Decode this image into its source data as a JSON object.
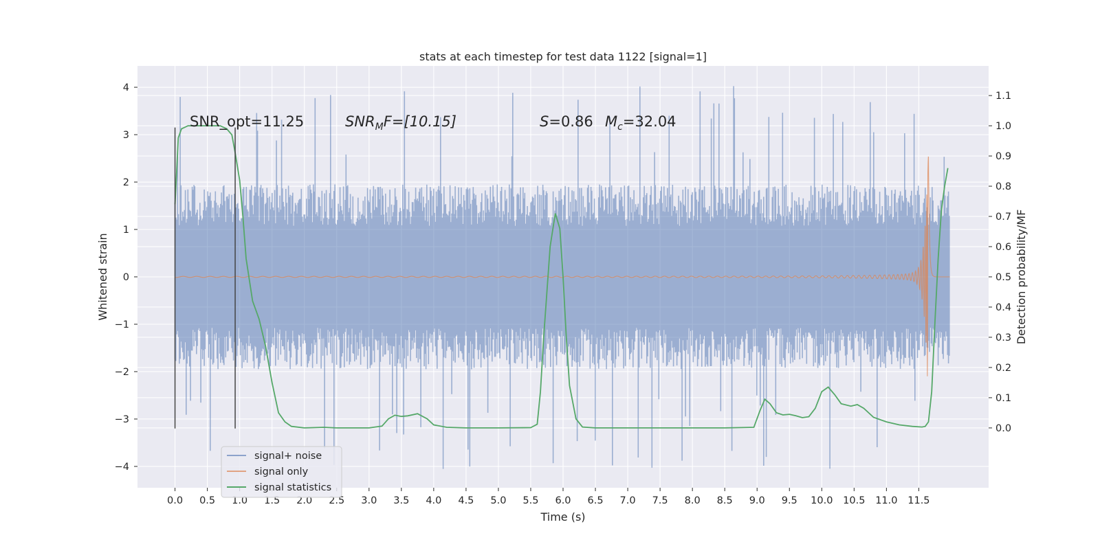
{
  "chart_data": {
    "type": "line",
    "title": "stats at each timestep for test data 1122 [signal=1]",
    "xlabel": "Time (s)",
    "ylabel": "Whitened strain",
    "y2label": "Detection probability/MF",
    "xlim": [
      -0.58,
      12.58
    ],
    "ylim": [
      -4.45,
      4.45
    ],
    "y2lim": [
      -0.198,
      1.198
    ],
    "xticks": [
      "0.0",
      "0.5",
      "1.0",
      "1.5",
      "2.0",
      "2.5",
      "3.0",
      "3.5",
      "4.0",
      "4.5",
      "5.0",
      "5.5",
      "6.0",
      "6.5",
      "7.0",
      "7.5",
      "8.0",
      "8.5",
      "9.0",
      "9.5",
      "10.0",
      "10.5",
      "11.0",
      "11.5"
    ],
    "yticks": [
      "4",
      "3",
      "2",
      "1",
      "0",
      "−1",
      "−2",
      "−3",
      "−4"
    ],
    "y2ticks": [
      "1.1",
      "1.0",
      "0.9",
      "0.8",
      "0.7",
      "0.6",
      "0.5",
      "0.4",
      "0.3",
      "0.2",
      "0.1",
      "0.0"
    ],
    "grid": true,
    "legend_position": "lower-left",
    "annotations": {
      "snr_opt": "SNR_opt=11.25",
      "snr_mf_symbol": "SNR",
      "snr_mf_sub": "M",
      "snr_mf_rest": "F=[10.15]",
      "s_symbol": "S",
      "s_value": "=0.86",
      "mc_symbol": "M",
      "mc_sub": "c",
      "mc_value": "=32.04"
    },
    "vertical_lines": {
      "x": [
        0.0,
        0.93
      ],
      "y_range": [
        -3.2,
        3.15
      ]
    },
    "series": [
      {
        "name": "signal+ noise",
        "color": "#4c72b0",
        "style": "dense-noise",
        "x_range": [
          0.0,
          11.98
        ],
        "typical_band": [
          -1.95,
          1.95
        ],
        "peak_range": [
          -4.1,
          4.05
        ]
      },
      {
        "name": "signal only",
        "color": "#dd8452",
        "style": "chirp",
        "x_range": [
          0.0,
          11.98
        ],
        "merger_time": 11.65,
        "peak_amplitude": 2.85
      },
      {
        "name": "signal statistics",
        "color": "#55a868",
        "axis": "right",
        "x": [
          0.0,
          0.05,
          0.1,
          0.2,
          0.3,
          0.5,
          0.7,
          0.8,
          0.88,
          0.93,
          1.0,
          1.05,
          1.1,
          1.2,
          1.3,
          1.4,
          1.5,
          1.6,
          1.7,
          1.8,
          2.0,
          2.3,
          2.5,
          3.0,
          3.2,
          3.3,
          3.4,
          3.5,
          3.6,
          3.75,
          3.9,
          4.0,
          4.2,
          4.5,
          5.0,
          5.5,
          5.6,
          5.65,
          5.7,
          5.8,
          5.88,
          5.95,
          6.0,
          6.05,
          6.1,
          6.2,
          6.3,
          6.5,
          7.0,
          8.0,
          8.5,
          8.95,
          9.05,
          9.12,
          9.2,
          9.3,
          9.4,
          9.5,
          9.6,
          9.7,
          9.8,
          9.9,
          10.0,
          10.1,
          10.2,
          10.3,
          10.45,
          10.55,
          10.65,
          10.8,
          11.0,
          11.2,
          11.4,
          11.55,
          11.6,
          11.65,
          11.7,
          11.75,
          11.8,
          11.85,
          11.9,
          11.95
        ],
        "values": [
          0.74,
          0.96,
          0.99,
          1.0,
          1.0,
          1.0,
          1.0,
          0.99,
          0.97,
          0.91,
          0.82,
          0.7,
          0.56,
          0.42,
          0.36,
          0.27,
          0.15,
          0.05,
          0.02,
          0.005,
          0.0,
          0.002,
          0.0,
          0.0,
          0.006,
          0.03,
          0.042,
          0.038,
          0.04,
          0.047,
          0.03,
          0.01,
          0.002,
          0.0,
          0.0,
          0.001,
          0.012,
          0.12,
          0.3,
          0.6,
          0.71,
          0.66,
          0.5,
          0.3,
          0.14,
          0.03,
          0.003,
          0.0,
          0.0,
          0.0,
          0.0,
          0.002,
          0.06,
          0.095,
          0.08,
          0.05,
          0.043,
          0.045,
          0.04,
          0.034,
          0.037,
          0.065,
          0.12,
          0.135,
          0.11,
          0.08,
          0.072,
          0.077,
          0.065,
          0.035,
          0.02,
          0.01,
          0.005,
          0.003,
          0.005,
          0.02,
          0.12,
          0.35,
          0.56,
          0.72,
          0.8,
          0.86
        ]
      }
    ]
  }
}
